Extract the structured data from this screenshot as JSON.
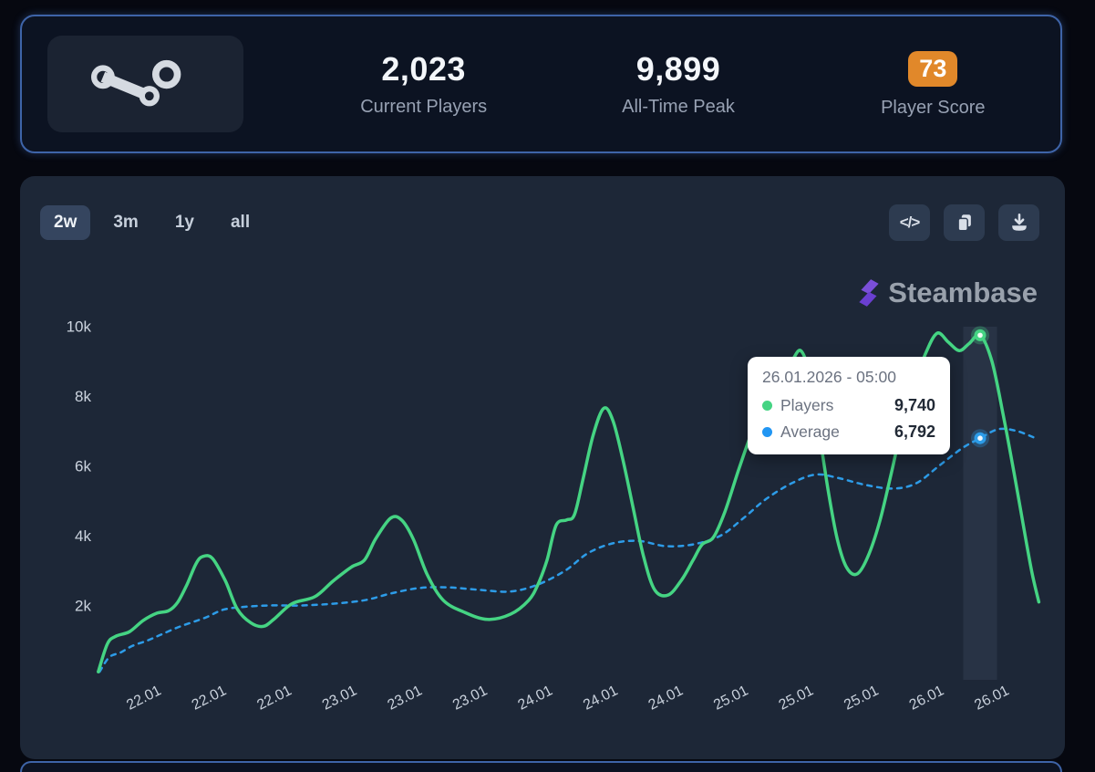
{
  "header": {
    "stats": [
      {
        "value": "2,023",
        "label": "Current Players"
      },
      {
        "value": "9,899",
        "label": "All-Time Peak"
      },
      {
        "value": "73",
        "label": "Player Score",
        "badge_color": "#e1882a"
      }
    ]
  },
  "toolbar": {
    "ranges": [
      {
        "label": "2w",
        "selected": true
      },
      {
        "label": "3m",
        "selected": false
      },
      {
        "label": "1y",
        "selected": false
      },
      {
        "label": "all",
        "selected": false
      }
    ],
    "action_icons": [
      "embed-code-icon",
      "copy-icon",
      "download-icon"
    ]
  },
  "watermark": {
    "text": "Steambase",
    "icon_color": "#7a4fd8"
  },
  "tooltip": {
    "title": "26.01.2026 - 05:00",
    "rows": [
      {
        "label": "Players",
        "value": "9,740",
        "color": "#45d483"
      },
      {
        "label": "Average",
        "value": "6,792",
        "color": "#2196f3"
      }
    ]
  },
  "chart_data": {
    "type": "line",
    "title": "",
    "x_ticks": [
      "22.01",
      "22.01",
      "22.01",
      "23.01",
      "23.01",
      "23.01",
      "24.01",
      "24.01",
      "24.01",
      "25.01",
      "25.01",
      "25.01",
      "26.01",
      "26.01"
    ],
    "y_ticks": [
      {
        "value": 2000,
        "label": "2k"
      },
      {
        "value": 4000,
        "label": "4k"
      },
      {
        "value": 6000,
        "label": "6k"
      },
      {
        "value": 8000,
        "label": "8k"
      },
      {
        "value": 10000,
        "label": "10k"
      }
    ],
    "ylim": [
      0,
      10700
    ],
    "grid": false,
    "legend_position": "tooltip",
    "hover": {
      "t": 12.79,
      "time": "26.01.2026 - 05:00"
    },
    "series": [
      {
        "name": "Average",
        "color": "#2d9ce8",
        "style": "dashed",
        "marker": {
          "t": 12.79,
          "value": 6792
        },
        "points": [
          [
            -0.71,
            100
          ],
          [
            -0.56,
            520
          ],
          [
            -0.39,
            650
          ],
          [
            -0.21,
            840
          ],
          [
            0.03,
            1000
          ],
          [
            0.25,
            1180
          ],
          [
            0.53,
            1400
          ],
          [
            0.91,
            1650
          ],
          [
            1.19,
            1880
          ],
          [
            1.51,
            1960
          ],
          [
            1.89,
            2000
          ],
          [
            2.38,
            2000
          ],
          [
            2.87,
            2050
          ],
          [
            3.35,
            2150
          ],
          [
            3.77,
            2350
          ],
          [
            4.19,
            2500
          ],
          [
            4.61,
            2520
          ],
          [
            5.1,
            2450
          ],
          [
            5.59,
            2400
          ],
          [
            6.01,
            2600
          ],
          [
            6.43,
            3000
          ],
          [
            6.78,
            3500
          ],
          [
            7.16,
            3780
          ],
          [
            7.55,
            3850
          ],
          [
            7.97,
            3700
          ],
          [
            8.39,
            3750
          ],
          [
            8.81,
            4000
          ],
          [
            9.16,
            4500
          ],
          [
            9.51,
            5050
          ],
          [
            9.9,
            5500
          ],
          [
            10.27,
            5750
          ],
          [
            10.62,
            5650
          ],
          [
            11.04,
            5450
          ],
          [
            11.46,
            5350
          ],
          [
            11.81,
            5500
          ],
          [
            12.16,
            6000
          ],
          [
            12.51,
            6500
          ],
          [
            12.79,
            6792
          ],
          [
            13.07,
            7050
          ],
          [
            13.35,
            7000
          ],
          [
            13.63,
            6800
          ]
        ]
      },
      {
        "name": "Players",
        "color": "#45d483",
        "style": "solid",
        "marker": {
          "t": 12.79,
          "value": 9740
        },
        "points": [
          [
            -0.73,
            100
          ],
          [
            -0.59,
            900
          ],
          [
            -0.46,
            1120
          ],
          [
            -0.25,
            1250
          ],
          [
            -0.04,
            1570
          ],
          [
            0.17,
            1780
          ],
          [
            0.35,
            1850
          ],
          [
            0.49,
            2100
          ],
          [
            0.63,
            2600
          ],
          [
            0.77,
            3200
          ],
          [
            0.87,
            3400
          ],
          [
            1.02,
            3350
          ],
          [
            1.22,
            2700
          ],
          [
            1.4,
            1900
          ],
          [
            1.61,
            1500
          ],
          [
            1.8,
            1400
          ],
          [
            1.96,
            1600
          ],
          [
            2.24,
            2050
          ],
          [
            2.59,
            2250
          ],
          [
            2.87,
            2700
          ],
          [
            3.15,
            3100
          ],
          [
            3.35,
            3300
          ],
          [
            3.52,
            3900
          ],
          [
            3.75,
            4500
          ],
          [
            3.92,
            4450
          ],
          [
            4.1,
            3900
          ],
          [
            4.31,
            2900
          ],
          [
            4.56,
            2150
          ],
          [
            4.89,
            1800
          ],
          [
            5.24,
            1600
          ],
          [
            5.59,
            1750
          ],
          [
            5.87,
            2150
          ],
          [
            6.01,
            2600
          ],
          [
            6.15,
            3300
          ],
          [
            6.29,
            4300
          ],
          [
            6.45,
            4450
          ],
          [
            6.57,
            4600
          ],
          [
            6.7,
            5600
          ],
          [
            6.86,
            6900
          ],
          [
            7.02,
            7650
          ],
          [
            7.16,
            7300
          ],
          [
            7.31,
            6200
          ],
          [
            7.47,
            4800
          ],
          [
            7.63,
            3400
          ],
          [
            7.8,
            2450
          ],
          [
            8.01,
            2300
          ],
          [
            8.22,
            2750
          ],
          [
            8.39,
            3300
          ],
          [
            8.53,
            3750
          ],
          [
            8.7,
            3950
          ],
          [
            8.88,
            4700
          ],
          [
            9.09,
            5900
          ],
          [
            9.3,
            7000
          ],
          [
            9.51,
            7800
          ],
          [
            9.72,
            8600
          ],
          [
            9.9,
            9000
          ],
          [
            10.04,
            9300
          ],
          [
            10.18,
            8600
          ],
          [
            10.32,
            7000
          ],
          [
            10.46,
            5300
          ],
          [
            10.6,
            3900
          ],
          [
            10.74,
            3100
          ],
          [
            10.9,
            2900
          ],
          [
            11.07,
            3400
          ],
          [
            11.25,
            4400
          ],
          [
            11.43,
            5800
          ],
          [
            11.6,
            7200
          ],
          [
            11.78,
            8300
          ],
          [
            11.95,
            9200
          ],
          [
            12.13,
            9800
          ],
          [
            12.3,
            9550
          ],
          [
            12.47,
            9300
          ],
          [
            12.62,
            9500
          ],
          [
            12.79,
            9740
          ],
          [
            12.97,
            9000
          ],
          [
            13.14,
            7500
          ],
          [
            13.31,
            5800
          ],
          [
            13.48,
            4000
          ],
          [
            13.59,
            2900
          ],
          [
            13.69,
            2100
          ]
        ]
      }
    ]
  }
}
